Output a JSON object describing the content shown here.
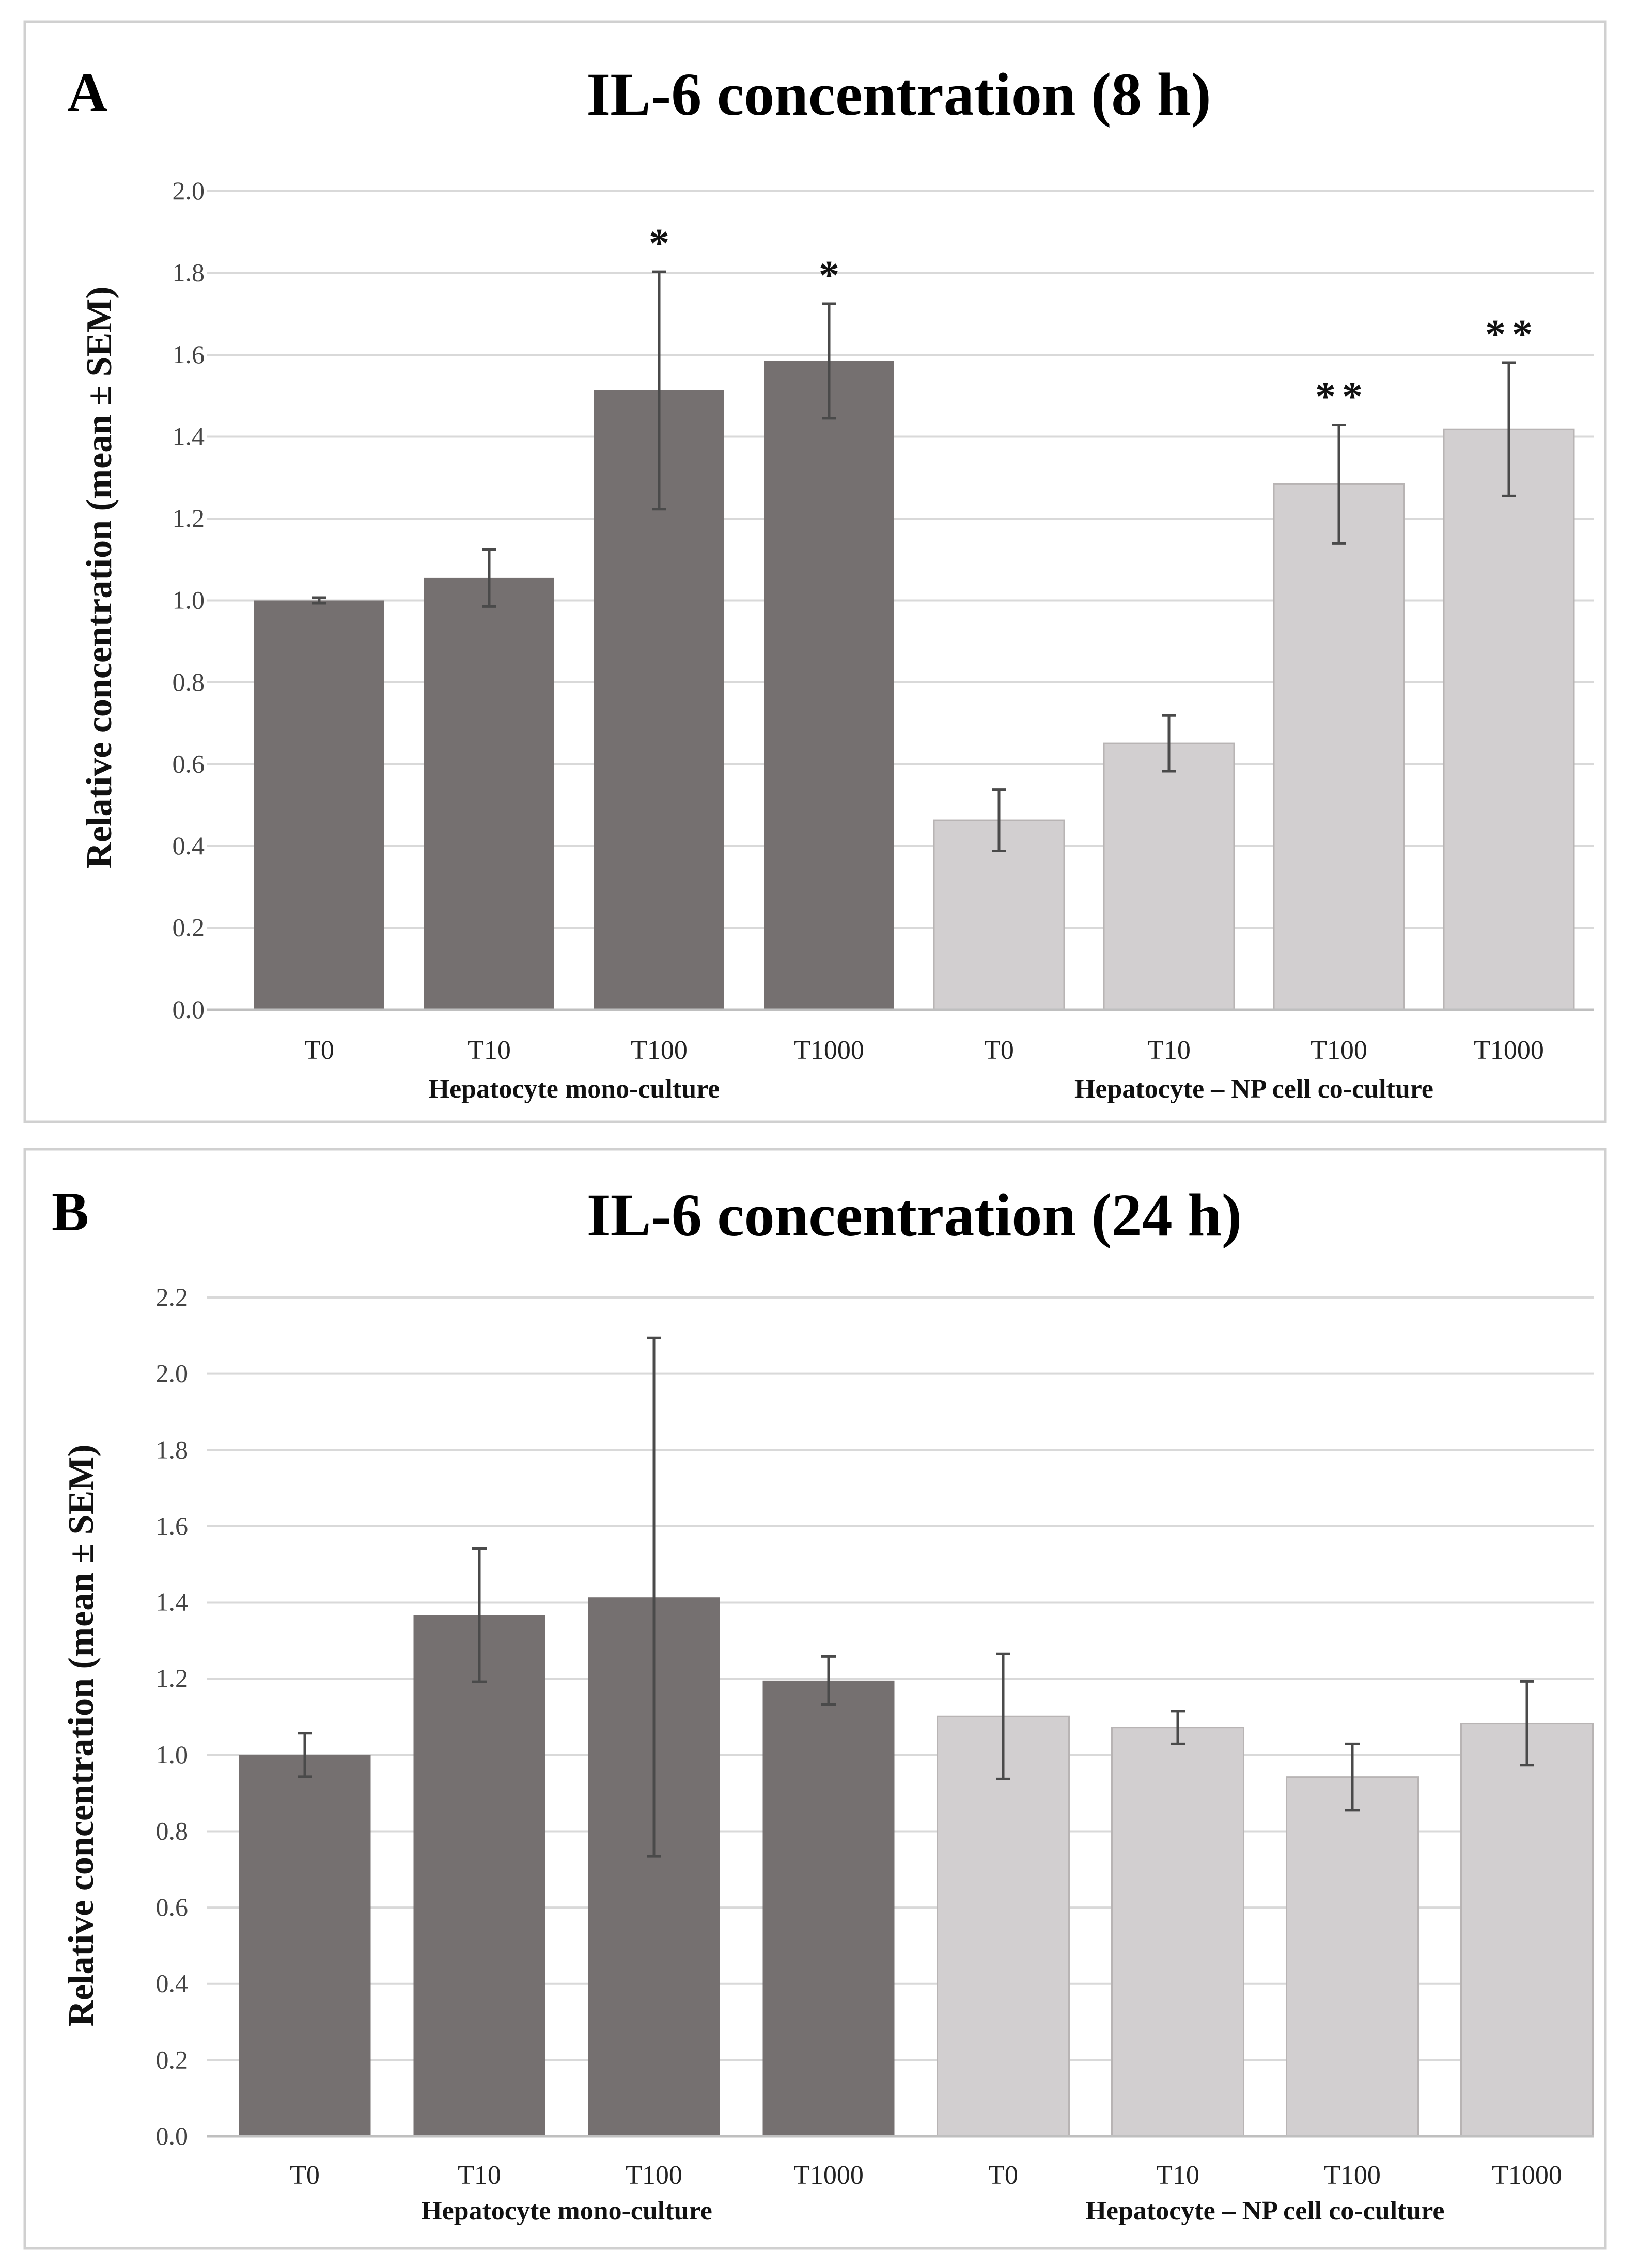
{
  "colors": {
    "mono": "#757070",
    "co": "#d2cfd0",
    "bar_border": "#b8b4b4"
  },
  "chart_data": [
    {
      "type": "bar",
      "panel_letter": "A",
      "title": "IL-6 concentration (8 h)",
      "xlabel": "",
      "ylabel": "Relative concentration (mean ± SEM)",
      "ylim": [
        0,
        2.0
      ],
      "yticks": [
        "0.0",
        "0.2",
        "0.4",
        "0.6",
        "0.8",
        "1.0",
        "1.2",
        "1.4",
        "1.6",
        "1.8",
        "2.0"
      ],
      "grid": true,
      "groups": [
        {
          "name": "Hepatocyte mono-culture",
          "color_key": "mono",
          "categories": [
            "T0",
            "T10",
            "T100",
            "T1000"
          ],
          "values": [
            1.0,
            1.055,
            1.513,
            1.585
          ],
          "errors": [
            0.007,
            0.07,
            0.29,
            0.14
          ],
          "significance": [
            "",
            "",
            "*",
            "*"
          ]
        },
        {
          "name": "Hepatocyte – NP cell co-culture",
          "color_key": "co",
          "categories": [
            "T0",
            "T10",
            "T100",
            "T1000"
          ],
          "values": [
            0.463,
            0.651,
            1.284,
            1.418
          ],
          "errors": [
            0.075,
            0.068,
            0.145,
            0.163
          ],
          "significance": [
            "",
            "",
            "**",
            "**"
          ]
        }
      ]
    },
    {
      "type": "bar",
      "panel_letter": "B",
      "title": "IL-6 concentration (24 h)",
      "xlabel": "",
      "ylabel": "Relative concentration (mean ± SEM)",
      "ylim": [
        0,
        2.2
      ],
      "yticks": [
        "0.0",
        "0.2",
        "0.4",
        "0.6",
        "0.8",
        "1.0",
        "1.2",
        "1.4",
        "1.6",
        "1.8",
        "2.0",
        "2.2"
      ],
      "grid": true,
      "groups": [
        {
          "name": "Hepatocyte mono-culture",
          "color_key": "mono",
          "categories": [
            "T0",
            "T10",
            "T100",
            "T1000"
          ],
          "values": [
            1.0,
            1.367,
            1.414,
            1.195
          ],
          "errors": [
            0.057,
            0.175,
            0.68,
            0.063
          ],
          "significance": [
            "",
            "",
            "",
            ""
          ]
        },
        {
          "name": "Hepatocyte – NP cell co-culture",
          "color_key": "co",
          "categories": [
            "T0",
            "T10",
            "T100",
            "T1000"
          ],
          "values": [
            1.101,
            1.072,
            0.942,
            1.083
          ],
          "errors": [
            0.164,
            0.043,
            0.087,
            0.11
          ],
          "significance": [
            "",
            "",
            "",
            ""
          ]
        }
      ]
    }
  ]
}
